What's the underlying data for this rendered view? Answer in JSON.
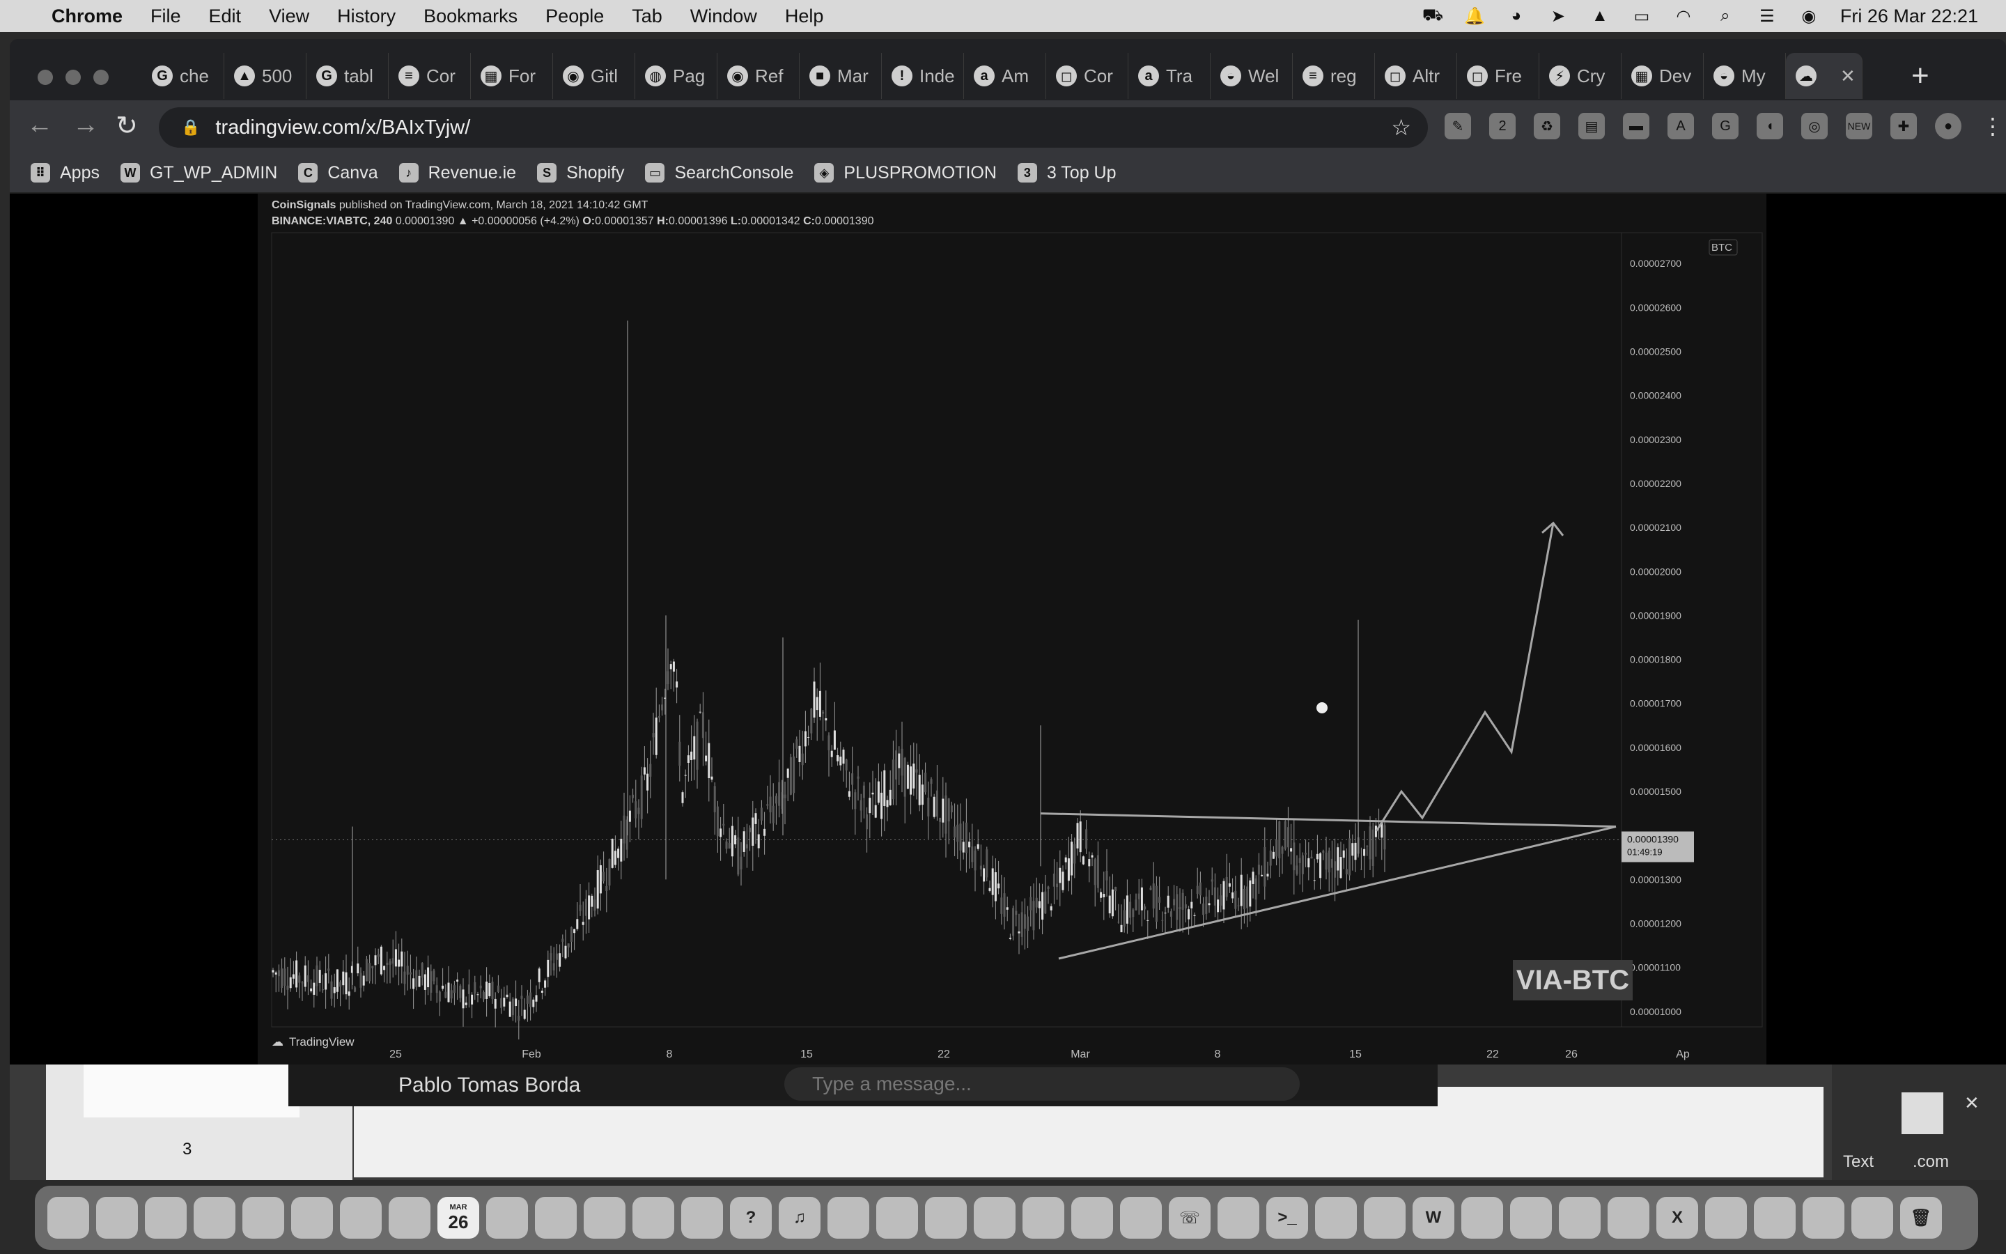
{
  "menubar": {
    "app": "Chrome",
    "items": [
      "File",
      "Edit",
      "View",
      "History",
      "Bookmarks",
      "People",
      "Tab",
      "Window",
      "Help"
    ],
    "clock": "Fri 26 Mar  22:21"
  },
  "tabs": [
    {
      "label": "che",
      "icon": "google-icon"
    },
    {
      "label": "500",
      "icon": "chart-icon"
    },
    {
      "label": "tabl",
      "icon": "google-icon"
    },
    {
      "label": "Cor",
      "icon": "stack-icon"
    },
    {
      "label": "For",
      "icon": "grid-icon"
    },
    {
      "label": "Gitl",
      "icon": "github-icon"
    },
    {
      "label": "Pag",
      "icon": "globe-icon"
    },
    {
      "label": "Ref",
      "icon": "github-icon"
    },
    {
      "label": "Mar",
      "icon": "cube-icon"
    },
    {
      "label": "Inde",
      "icon": "pin-icon"
    },
    {
      "label": "Am",
      "icon": "amazon-icon"
    },
    {
      "label": "Cor",
      "icon": "square-icon"
    },
    {
      "label": "Tra",
      "icon": "amazon-icon"
    },
    {
      "label": "Wel",
      "icon": "owl-icon"
    },
    {
      "label": "reg",
      "icon": "stack-icon"
    },
    {
      "label": "Altr",
      "icon": "square-icon"
    },
    {
      "label": "Fre",
      "icon": "square-icon"
    },
    {
      "label": "Cry",
      "icon": "bolt-icon"
    },
    {
      "label": "Dev",
      "icon": "grid-icon"
    },
    {
      "label": "My",
      "icon": "owl-icon"
    },
    {
      "label": "",
      "icon": "tradingview-icon",
      "active": true
    }
  ],
  "address": {
    "url": "tradingview.com/x/BAIxTyjw/"
  },
  "extensions": {
    "badge_2": "2",
    "badge_new": "NEW"
  },
  "bookmarks": [
    {
      "label": "Apps",
      "icon": "apps-grid-icon"
    },
    {
      "label": "GT_WP_ADMIN",
      "icon": "wordpress-icon"
    },
    {
      "label": "Canva",
      "icon": "canva-icon"
    },
    {
      "label": "Revenue.ie",
      "icon": "harp-icon"
    },
    {
      "label": "Shopify",
      "icon": "shopify-icon"
    },
    {
      "label": "SearchConsole",
      "icon": "console-icon"
    },
    {
      "label": "PLUSPROMOTION",
      "icon": "promo-icon"
    },
    {
      "label": "3 Top Up",
      "icon": "topup-icon"
    }
  ],
  "tradingview": {
    "publisher": "CoinSignals",
    "published": "published on TradingView.com, March 18, 2021 14:10:42 GMT",
    "symbol": "BINANCE:VIABTC, 240",
    "last": "0.00001390",
    "change": "▲ +0.00000056 (+4.2%)",
    "o_label": "O:",
    "o": "0.00001357",
    "h_label": "H:",
    "h": "0.00001396",
    "l_label": "L:",
    "l": "0.00001342",
    "c_label": "C:",
    "c": "0.00001390",
    "currency": "BTC",
    "price_tag": "0.00001390",
    "countdown": "01:49:19",
    "watermark": "VIA-BTC",
    "footer": "TradingView"
  },
  "chart_data": {
    "type": "candlestick",
    "y_ticks": [
      "0.00002700",
      "0.00002600",
      "0.00002500",
      "0.00002400",
      "0.00002300",
      "0.00002200",
      "0.00002100",
      "0.00002000",
      "0.00001900",
      "0.00001800",
      "0.00001700",
      "0.00001600",
      "0.00001500",
      "0.00001400",
      "0.00001300",
      "0.00001200",
      "0.00001100",
      "0.00001000"
    ],
    "x_ticks": [
      "25",
      "Feb",
      "8",
      "15",
      "22",
      "Mar",
      "8",
      "15",
      "22",
      "26",
      "Ap"
    ],
    "ylim": [
      9.3e-06,
      2.77e-05
    ],
    "trend_resistance": 1.45e-05,
    "support_start": 1.12e-05,
    "forecast_target": 2.11e-05,
    "last_price": 1.39e-05
  },
  "background": {
    "chat_name": "Pablo Tomas Borda",
    "chat_placeholder": "Type a message...",
    "left_number": "3",
    "text_label": "Text",
    "com_label": ".com"
  },
  "dock": {
    "calendar_month": "MAR",
    "calendar_day": "26"
  }
}
